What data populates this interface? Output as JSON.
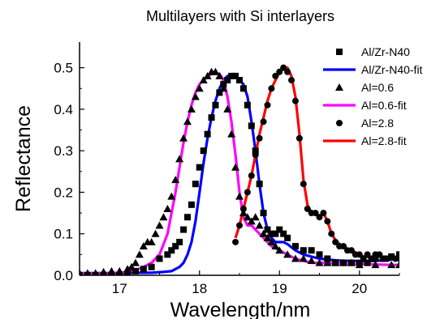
{
  "chart_data": {
    "type": "line",
    "title": "Multilayers with Si interlayers",
    "xlabel": "Wavelength/nm",
    "ylabel": "Reflectance",
    "xlim": [
      16.5,
      20.5
    ],
    "ylim": [
      0,
      0.55
    ],
    "xticks": [
      "17",
      "18",
      "19",
      "20"
    ],
    "xtick_values": [
      17,
      18,
      19,
      20
    ],
    "yticks": [
      "0.0",
      "0.1",
      "0.2",
      "0.3",
      "0.4",
      "0.5"
    ],
    "ytick_values": [
      0,
      0.1,
      0.2,
      0.3,
      0.4,
      0.5
    ],
    "grid": false,
    "legend_position": "top-right",
    "series": [
      {
        "name": "Al/Zr-N40",
        "kind": "markers",
        "marker": "square",
        "color": "#000000",
        "x": [
          16.5,
          16.6,
          16.7,
          16.8,
          16.9,
          17.0,
          17.1,
          17.2,
          17.3,
          17.4,
          17.5,
          17.6,
          17.65,
          17.7,
          17.75,
          17.8,
          17.85,
          17.9,
          17.95,
          18.0,
          18.05,
          18.1,
          18.15,
          18.2,
          18.25,
          18.3,
          18.35,
          18.4,
          18.45,
          18.5,
          18.55,
          18.6,
          18.65,
          18.7,
          18.75,
          18.8,
          18.85,
          18.9,
          18.95,
          19.0,
          19.05,
          19.1,
          19.2,
          19.3,
          19.4,
          19.5,
          19.6,
          19.7,
          19.8,
          19.9,
          20.0,
          20.1,
          20.2,
          20.3,
          20.4,
          20.5
        ],
        "y": [
          0.0,
          0.0,
          0.0,
          0.0,
          0.0,
          0.0,
          0.0,
          0.01,
          0.015,
          0.02,
          0.04,
          0.05,
          0.06,
          0.07,
          0.08,
          0.11,
          0.14,
          0.17,
          0.22,
          0.26,
          0.3,
          0.34,
          0.38,
          0.41,
          0.44,
          0.46,
          0.47,
          0.48,
          0.48,
          0.47,
          0.45,
          0.41,
          0.36,
          0.3,
          0.22,
          0.15,
          0.11,
          0.1,
          0.1,
          0.11,
          0.1,
          0.09,
          0.07,
          0.06,
          0.06,
          0.05,
          0.04,
          0.03,
          0.03,
          0.03,
          0.03,
          0.03,
          0.04,
          0.04,
          0.045,
          0.05
        ]
      },
      {
        "name": "Al/Zr-N40-fit",
        "kind": "line",
        "color": "#0000ff",
        "x": [
          16.5,
          16.8,
          17.0,
          17.2,
          17.4,
          17.55,
          17.65,
          17.7,
          17.75,
          17.8,
          17.85,
          17.9,
          17.95,
          18.0,
          18.05,
          18.1,
          18.15,
          18.2,
          18.25,
          18.3,
          18.35,
          18.4,
          18.45,
          18.5,
          18.55,
          18.6,
          18.65,
          18.7,
          18.75,
          18.8,
          18.85,
          18.9,
          18.95,
          19.0,
          19.05,
          19.1,
          19.2,
          19.3,
          19.4,
          19.5,
          19.6,
          19.7,
          19.8,
          19.9,
          20.0,
          20.1,
          20.2,
          20.3,
          20.4,
          20.5
        ],
        "y": [
          0.005,
          0.005,
          0.005,
          0.006,
          0.006,
          0.008,
          0.01,
          0.015,
          0.02,
          0.03,
          0.05,
          0.08,
          0.13,
          0.2,
          0.27,
          0.33,
          0.38,
          0.42,
          0.45,
          0.47,
          0.48,
          0.482,
          0.48,
          0.47,
          0.46,
          0.43,
          0.37,
          0.3,
          0.22,
          0.15,
          0.11,
          0.09,
          0.08,
          0.08,
          0.08,
          0.075,
          0.06,
          0.05,
          0.045,
          0.04,
          0.038,
          0.036,
          0.035,
          0.035,
          0.034,
          0.034,
          0.035,
          0.036,
          0.038,
          0.04
        ]
      },
      {
        "name": "Al=0.6",
        "kind": "markers",
        "marker": "triangle",
        "color": "#000000",
        "x": [
          16.5,
          16.6,
          16.7,
          16.8,
          16.9,
          17.0,
          17.1,
          17.15,
          17.2,
          17.25,
          17.3,
          17.35,
          17.4,
          17.45,
          17.5,
          17.55,
          17.6,
          17.65,
          17.7,
          17.75,
          17.8,
          17.85,
          17.9,
          17.95,
          18.0,
          18.05,
          18.1,
          18.15,
          18.2,
          18.25,
          18.3,
          18.35,
          18.4,
          18.45,
          18.5,
          18.55,
          18.6,
          18.65,
          18.7,
          18.75,
          18.8,
          18.85,
          18.9,
          18.95,
          19.0,
          19.1,
          19.2,
          19.3,
          19.4,
          19.5,
          19.6,
          19.7,
          19.8,
          19.9,
          20.0,
          20.2,
          20.4,
          20.5
        ],
        "y": [
          0.005,
          0.005,
          0.005,
          0.008,
          0.01,
          0.01,
          0.015,
          0.02,
          0.03,
          0.05,
          0.07,
          0.08,
          0.08,
          0.1,
          0.12,
          0.14,
          0.16,
          0.19,
          0.23,
          0.28,
          0.33,
          0.37,
          0.4,
          0.43,
          0.45,
          0.47,
          0.48,
          0.49,
          0.49,
          0.48,
          0.45,
          0.4,
          0.34,
          0.26,
          0.19,
          0.15,
          0.14,
          0.13,
          0.14,
          0.12,
          0.1,
          0.09,
          0.08,
          0.07,
          0.06,
          0.05,
          0.04,
          0.04,
          0.035,
          0.03,
          0.03,
          0.03,
          0.03,
          0.03,
          0.025,
          0.025,
          0.025,
          0.025
        ]
      },
      {
        "name": "Al=0.6-fit",
        "kind": "line",
        "color": "#ff00ff",
        "x": [
          16.5,
          16.8,
          17.0,
          17.1,
          17.2,
          17.3,
          17.4,
          17.5,
          17.6,
          17.65,
          17.7,
          17.75,
          17.8,
          17.85,
          17.9,
          17.95,
          18.0,
          18.05,
          18.1,
          18.15,
          18.2,
          18.25,
          18.3,
          18.35,
          18.4,
          18.45,
          18.5,
          18.55,
          18.6,
          18.65,
          18.7,
          18.75,
          18.8,
          18.9,
          19.0,
          19.1,
          19.2,
          19.3,
          19.4,
          19.5,
          19.6,
          19.7,
          19.8,
          19.9,
          20.0,
          20.2,
          20.4,
          20.5
        ],
        "y": [
          0.005,
          0.005,
          0.006,
          0.008,
          0.012,
          0.02,
          0.03,
          0.05,
          0.1,
          0.15,
          0.2,
          0.26,
          0.32,
          0.37,
          0.41,
          0.44,
          0.46,
          0.47,
          0.48,
          0.485,
          0.487,
          0.485,
          0.47,
          0.43,
          0.37,
          0.29,
          0.2,
          0.14,
          0.12,
          0.12,
          0.11,
          0.1,
          0.09,
          0.07,
          0.06,
          0.05,
          0.04,
          0.035,
          0.03,
          0.03,
          0.03,
          0.028,
          0.028,
          0.027,
          0.027,
          0.026,
          0.025,
          0.025
        ]
      },
      {
        "name": "Al=2.8",
        "kind": "markers",
        "marker": "circle",
        "color": "#000000",
        "x": [
          18.45,
          18.5,
          18.55,
          18.6,
          18.65,
          18.7,
          18.75,
          18.8,
          18.85,
          18.9,
          18.95,
          19.0,
          19.05,
          19.1,
          19.15,
          19.2,
          19.25,
          19.3,
          19.35,
          19.4,
          19.45,
          19.5,
          19.55,
          19.6,
          19.65,
          19.7,
          19.75,
          19.8,
          19.85,
          19.9,
          19.95,
          20.0,
          20.05,
          20.1,
          20.15,
          20.2,
          20.25,
          20.3,
          20.35,
          20.4,
          20.45,
          20.5
        ],
        "y": [
          0.08,
          0.12,
          0.16,
          0.2,
          0.24,
          0.29,
          0.33,
          0.37,
          0.41,
          0.45,
          0.48,
          0.49,
          0.5,
          0.49,
          0.47,
          0.42,
          0.33,
          0.22,
          0.16,
          0.15,
          0.15,
          0.14,
          0.15,
          0.13,
          0.1,
          0.08,
          0.07,
          0.07,
          0.06,
          0.06,
          0.05,
          0.05,
          0.04,
          0.05,
          0.04,
          0.05,
          0.05,
          0.04,
          0.04,
          0.045,
          0.04,
          0.04
        ]
      },
      {
        "name": "Al=2.8-fit",
        "kind": "line",
        "color": "#ff0000",
        "x": [
          18.45,
          18.5,
          18.55,
          18.6,
          18.65,
          18.7,
          18.75,
          18.8,
          18.85,
          18.9,
          18.95,
          19.0,
          19.05,
          19.1,
          19.15,
          19.2,
          19.25,
          19.3,
          19.35,
          19.4,
          19.45,
          19.5,
          19.55,
          19.6,
          19.65,
          19.7,
          19.75,
          19.8,
          19.85,
          19.9,
          19.95,
          20.0,
          20.05,
          20.1,
          20.15,
          20.2,
          20.25,
          20.3,
          20.35,
          20.4,
          20.45,
          20.5
        ],
        "y": [
          0.09,
          0.12,
          0.16,
          0.2,
          0.24,
          0.29,
          0.34,
          0.38,
          0.42,
          0.45,
          0.47,
          0.49,
          0.5,
          0.5,
          0.48,
          0.43,
          0.34,
          0.23,
          0.17,
          0.15,
          0.15,
          0.14,
          0.15,
          0.13,
          0.1,
          0.085,
          0.075,
          0.07,
          0.06,
          0.06,
          0.055,
          0.05,
          0.045,
          0.045,
          0.04,
          0.045,
          0.045,
          0.04,
          0.04,
          0.04,
          0.04,
          0.04
        ]
      }
    ]
  }
}
